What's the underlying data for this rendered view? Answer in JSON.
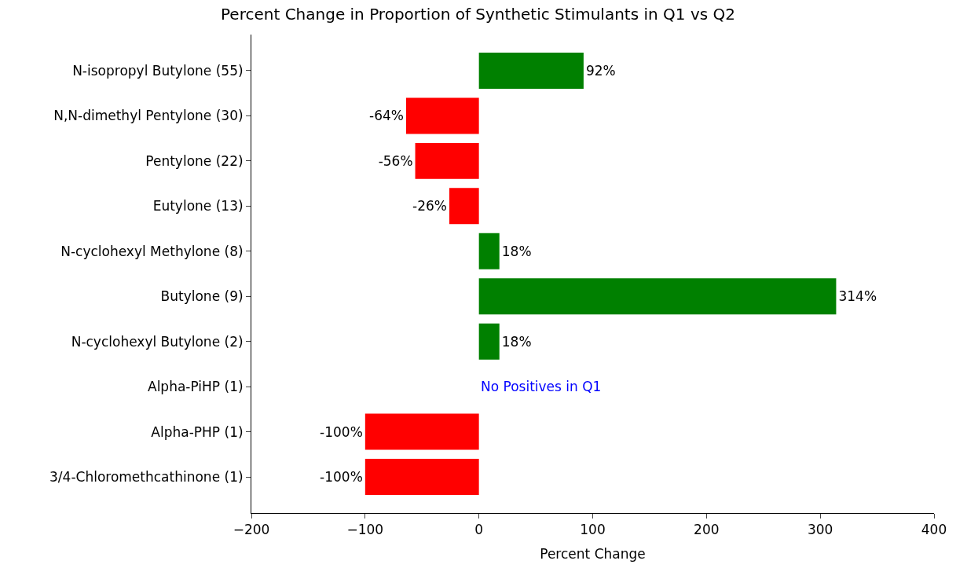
{
  "chart_data": {
    "type": "bar",
    "orientation": "horizontal",
    "title": "Percent Change in Proportion of Synthetic Stimulants in Q1 vs Q2",
    "xlabel": "Percent Change",
    "categories": [
      "N-isopropyl Butylone (55)",
      "N,N-dimethyl Pentylone (30)",
      "Pentylone (22)",
      "Eutylone (13)",
      "N-cyclohexyl Methylone (8)",
      "Butylone (9)",
      "N-cyclohexyl Butylone (2)",
      "Alpha-PiHP (1)",
      "Alpha-PHP (1)",
      "3/4-Chloromethcathinone (1)"
    ],
    "values": [
      92,
      -64,
      -56,
      -26,
      18,
      314,
      18,
      null,
      -100,
      -100
    ],
    "colors": [
      "#008000",
      "#ff0000",
      "#ff0000",
      "#ff0000",
      "#008000",
      "#008000",
      "#008000",
      null,
      "#ff0000",
      "#ff0000"
    ],
    "value_labels": [
      "92%",
      "-64%",
      "-56%",
      "-26%",
      "18%",
      "314%",
      "18%",
      null,
      "-100%",
      "-100%"
    ],
    "annotations": [
      "No Positives in Q1"
    ],
    "xlim": [
      -200,
      400
    ],
    "xticks": [
      {
        "value": -200,
        "label": "−200"
      },
      {
        "value": -100,
        "label": "−100"
      },
      0,
      100,
      200,
      300,
      400
    ],
    "legend": false
  }
}
